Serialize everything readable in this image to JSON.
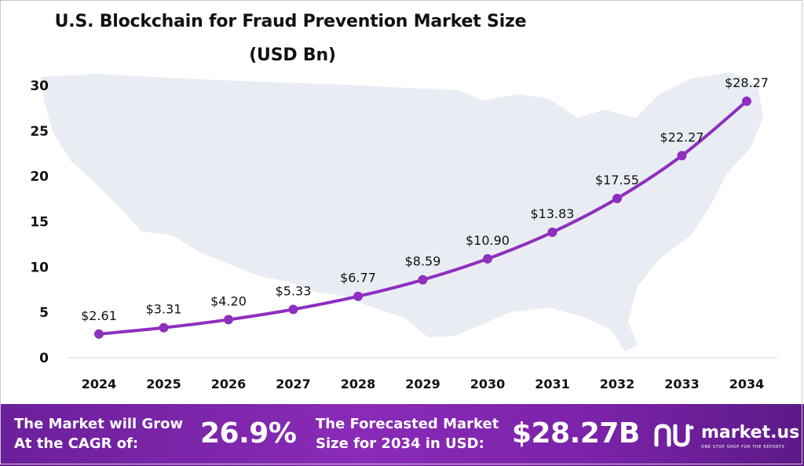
{
  "chart_data": {
    "type": "line",
    "title_line1": "U.S. Blockchain for Fraud Prevention Market Size",
    "title_line2": "(USD Bn)",
    "categories": [
      "2024",
      "2025",
      "2026",
      "2027",
      "2028",
      "2029",
      "2030",
      "2031",
      "2032",
      "2033",
      "2034"
    ],
    "values": [
      2.61,
      3.31,
      4.2,
      5.33,
      6.77,
      8.59,
      10.9,
      13.83,
      17.55,
      22.27,
      28.27
    ],
    "value_labels": [
      "$2.61",
      "$3.31",
      "$4.20",
      "$5.33",
      "$6.77",
      "$8.59",
      "$10.90",
      "$13.83",
      "$17.55",
      "$22.27",
      "$28.27"
    ],
    "yticks": [
      0,
      5,
      10,
      15,
      20,
      25,
      30
    ],
    "ylim": [
      0,
      30
    ],
    "grid": false,
    "legend": "none",
    "line_color": "#8e2fbf",
    "background_map_color": "#e9edf3"
  },
  "footer": {
    "cagr_label_line1": "The Market will Grow",
    "cagr_label_line2": "At the CAGR of:",
    "cagr_value": "26.9%",
    "forecast_label_line1": "The Forecasted Market",
    "forecast_label_line2": "Size for 2034 in USD:",
    "forecast_value": "$28.27B"
  },
  "brand": {
    "name": "market.us",
    "tagline": "ONE STOP SHOP FOR THE REPORTS",
    "logo_icon": "market-us-logo-icon"
  }
}
